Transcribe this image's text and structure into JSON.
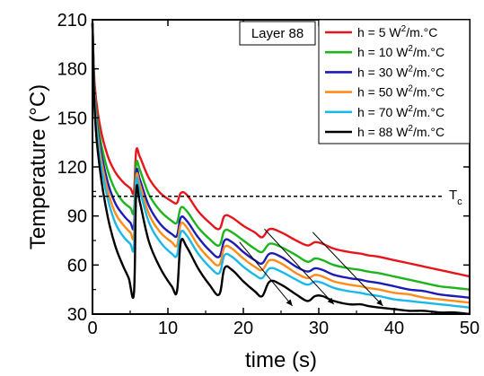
{
  "chart_data": {
    "type": "line",
    "xlabel": "time (s)",
    "ylabel": "Temperature (°C)",
    "xlim": [
      0,
      50
    ],
    "ylim": [
      30,
      210
    ],
    "xticks": [
      0,
      10,
      20,
      30,
      40,
      50
    ],
    "yticks": [
      30,
      60,
      90,
      120,
      150,
      180,
      210
    ],
    "grid": false,
    "legend_position": "top-right",
    "layer_label": "Layer 88",
    "reference_line": {
      "label": "T",
      "label_subscript": "c",
      "y": 102,
      "style": "dashed"
    },
    "series": [
      {
        "name": "h = 5 W²/m.°C",
        "legend_main": "h = 5 W",
        "legend_sup": "2",
        "legend_tail": "/m.°C",
        "color": "#e8141c",
        "points": [
          [
            0,
            208
          ],
          [
            0.3,
            170
          ],
          [
            1,
            145
          ],
          [
            2,
            127
          ],
          [
            3,
            117
          ],
          [
            4,
            111
          ],
          [
            5,
            107
          ],
          [
            5.5,
            105
          ],
          [
            5.8,
            130
          ],
          [
            6.3,
            126
          ],
          [
            7.5,
            113
          ],
          [
            9,
            104
          ],
          [
            10.5,
            99
          ],
          [
            11.2,
            98
          ],
          [
            11.7,
            104
          ],
          [
            12.5,
            103
          ],
          [
            14,
            93
          ],
          [
            15.5,
            86
          ],
          [
            16.8,
            82
          ],
          [
            17.5,
            90
          ],
          [
            18.5,
            89
          ],
          [
            20,
            84
          ],
          [
            21.5,
            80
          ],
          [
            22.5,
            77
          ],
          [
            23.5,
            82
          ],
          [
            25,
            80
          ],
          [
            27,
            75
          ],
          [
            28.5,
            72
          ],
          [
            29.5,
            74
          ],
          [
            30.5,
            73
          ],
          [
            32,
            70
          ],
          [
            34,
            68
          ],
          [
            35.5,
            67
          ],
          [
            36.5,
            66
          ],
          [
            38,
            65
          ],
          [
            40,
            63
          ],
          [
            42,
            61
          ],
          [
            44,
            59
          ],
          [
            46,
            57
          ],
          [
            48,
            55
          ],
          [
            50,
            53
          ]
        ]
      },
      {
        "name": "h = 10 W²/m.°C",
        "legend_main": "h = 10 W",
        "legend_sup": "2",
        "legend_tail": "/m.°C",
        "color": "#1cb51c",
        "points": [
          [
            0,
            208
          ],
          [
            0.3,
            165
          ],
          [
            1,
            138
          ],
          [
            2,
            118
          ],
          [
            3,
            106
          ],
          [
            4,
            99
          ],
          [
            5,
            95
          ],
          [
            5.5,
            93
          ],
          [
            5.8,
            122
          ],
          [
            6.3,
            118
          ],
          [
            7.5,
            103
          ],
          [
            9,
            93
          ],
          [
            10.5,
            87
          ],
          [
            11.2,
            86
          ],
          [
            11.7,
            95
          ],
          [
            12.5,
            93
          ],
          [
            14,
            83
          ],
          [
            15.5,
            76
          ],
          [
            16.8,
            72
          ],
          [
            17.5,
            81
          ],
          [
            18.5,
            80
          ],
          [
            20,
            75
          ],
          [
            21.5,
            70
          ],
          [
            22.5,
            68
          ],
          [
            23.5,
            73
          ],
          [
            25,
            71
          ],
          [
            27,
            66
          ],
          [
            28.5,
            62
          ],
          [
            29.5,
            64
          ],
          [
            30.5,
            63
          ],
          [
            32,
            60
          ],
          [
            34,
            58
          ],
          [
            35.5,
            57
          ],
          [
            36.5,
            56
          ],
          [
            38,
            55
          ],
          [
            40,
            53
          ],
          [
            42,
            51
          ],
          [
            44,
            49
          ],
          [
            46,
            47
          ],
          [
            48,
            46
          ],
          [
            50,
            45
          ]
        ]
      },
      {
        "name": "h = 30 W²/m.°C",
        "legend_main": "h = 30 W",
        "legend_sup": "2",
        "legend_tail": "/m.°C",
        "color": "#1c1cb5",
        "points": [
          [
            0,
            208
          ],
          [
            0.3,
            162
          ],
          [
            1,
            133
          ],
          [
            2,
            111
          ],
          [
            3,
            98
          ],
          [
            4,
            91
          ],
          [
            5,
            86
          ],
          [
            5.5,
            84
          ],
          [
            5.8,
            117
          ],
          [
            6.3,
            112
          ],
          [
            7.5,
            96
          ],
          [
            9,
            85
          ],
          [
            10.5,
            79
          ],
          [
            11.2,
            78
          ],
          [
            11.7,
            89
          ],
          [
            12.5,
            87
          ],
          [
            14,
            77
          ],
          [
            15.5,
            69
          ],
          [
            16.8,
            65
          ],
          [
            17.5,
            75
          ],
          [
            18.5,
            74
          ],
          [
            20,
            68
          ],
          [
            21.5,
            63
          ],
          [
            22.5,
            61
          ],
          [
            23.5,
            67
          ],
          [
            25,
            65
          ],
          [
            27,
            59
          ],
          [
            28.5,
            56
          ],
          [
            29.5,
            58
          ],
          [
            30.5,
            57
          ],
          [
            32,
            54
          ],
          [
            34,
            52
          ],
          [
            35.5,
            51
          ],
          [
            36.5,
            50
          ],
          [
            38,
            49
          ],
          [
            40,
            47
          ],
          [
            42,
            45
          ],
          [
            44,
            44
          ],
          [
            46,
            42
          ],
          [
            48,
            41
          ],
          [
            50,
            40
          ]
        ]
      },
      {
        "name": "h = 50 W²/m.°C",
        "legend_main": "h = 50 W",
        "legend_sup": "2",
        "legend_tail": "/m.°C",
        "color": "#ff8c1a",
        "points": [
          [
            0,
            208
          ],
          [
            0.3,
            160
          ],
          [
            1,
            129
          ],
          [
            2,
            106
          ],
          [
            3,
            92
          ],
          [
            4,
            85
          ],
          [
            5,
            80
          ],
          [
            5.5,
            78
          ],
          [
            5.8,
            114
          ],
          [
            6.3,
            109
          ],
          [
            7.5,
            91
          ],
          [
            9,
            80
          ],
          [
            10.5,
            74
          ],
          [
            11.2,
            72
          ],
          [
            11.7,
            85
          ],
          [
            12.5,
            83
          ],
          [
            14,
            72
          ],
          [
            15.5,
            64
          ],
          [
            16.8,
            60
          ],
          [
            17.5,
            71
          ],
          [
            18.5,
            70
          ],
          [
            20,
            64
          ],
          [
            21.5,
            59
          ],
          [
            22.5,
            57
          ],
          [
            23.5,
            63
          ],
          [
            25,
            61
          ],
          [
            27,
            55
          ],
          [
            28.5,
            52
          ],
          [
            29.5,
            54
          ],
          [
            30.5,
            53
          ],
          [
            32,
            50
          ],
          [
            34,
            48
          ],
          [
            35.5,
            47
          ],
          [
            36.5,
            46
          ],
          [
            38,
            45
          ],
          [
            40,
            43
          ],
          [
            42,
            42
          ],
          [
            44,
            40
          ],
          [
            46,
            39
          ],
          [
            48,
            38
          ],
          [
            50,
            37
          ]
        ]
      },
      {
        "name": "h = 70 W²/m.°C",
        "legend_main": "h = 70 W",
        "legend_sup": "2",
        "legend_tail": "/m.°C",
        "color": "#1ab8e8",
        "points": [
          [
            0,
            208
          ],
          [
            0.3,
            158
          ],
          [
            1,
            125
          ],
          [
            2,
            101
          ],
          [
            3,
            86
          ],
          [
            4,
            78
          ],
          [
            5,
            73
          ],
          [
            5.5,
            71
          ],
          [
            5.8,
            111
          ],
          [
            6.3,
            105
          ],
          [
            7.5,
            86
          ],
          [
            9,
            74
          ],
          [
            10.5,
            67
          ],
          [
            11.2,
            66
          ],
          [
            11.7,
            80
          ],
          [
            12.5,
            78
          ],
          [
            14,
            67
          ],
          [
            15.5,
            59
          ],
          [
            16.8,
            55
          ],
          [
            17.5,
            66
          ],
          [
            18.5,
            65
          ],
          [
            20,
            59
          ],
          [
            21.5,
            54
          ],
          [
            22.5,
            52
          ],
          [
            23.5,
            58
          ],
          [
            25,
            56
          ],
          [
            27,
            51
          ],
          [
            28.5,
            48
          ],
          [
            29.5,
            50
          ],
          [
            30.5,
            49
          ],
          [
            32,
            46
          ],
          [
            34,
            44
          ],
          [
            35.5,
            43
          ],
          [
            36.5,
            42
          ],
          [
            38,
            41
          ],
          [
            40,
            39
          ],
          [
            42,
            38
          ],
          [
            44,
            37
          ],
          [
            46,
            36
          ],
          [
            48,
            35
          ],
          [
            50,
            34
          ]
        ]
      },
      {
        "name": "h = 88 W²/m.°C",
        "legend_main": "h = 88 W",
        "legend_sup": "2",
        "legend_tail": "/m.°C",
        "color": "#000000",
        "points": [
          [
            0,
            208
          ],
          [
            0.3,
            154
          ],
          [
            1,
            118
          ],
          [
            2,
            90
          ],
          [
            3,
            72
          ],
          [
            4,
            60
          ],
          [
            4.8,
            52
          ],
          [
            5.5,
            43
          ],
          [
            5.8,
            105
          ],
          [
            6.3,
            98
          ],
          [
            7.5,
            74
          ],
          [
            9,
            58
          ],
          [
            10.5,
            47
          ],
          [
            11.2,
            44
          ],
          [
            11.7,
            74
          ],
          [
            12.5,
            71
          ],
          [
            14,
            58
          ],
          [
            15.5,
            48
          ],
          [
            16.8,
            42
          ],
          [
            17.5,
            58
          ],
          [
            18.5,
            57
          ],
          [
            20,
            50
          ],
          [
            21.5,
            44
          ],
          [
            22.5,
            41
          ],
          [
            23.5,
            50
          ],
          [
            25,
            48
          ],
          [
            27,
            42
          ],
          [
            28.5,
            38
          ],
          [
            29.5,
            41
          ],
          [
            30.5,
            41
          ],
          [
            32,
            38
          ],
          [
            34,
            36
          ],
          [
            35.5,
            36
          ],
          [
            36.5,
            35
          ],
          [
            38,
            34
          ],
          [
            40,
            33
          ],
          [
            42,
            32
          ],
          [
            44,
            32
          ],
          [
            46,
            31
          ],
          [
            48,
            31
          ],
          [
            50,
            30
          ]
        ]
      }
    ],
    "arrows": [
      {
        "from": [
          19.5,
          74
        ],
        "to": [
          26.5,
          35
        ]
      },
      {
        "from": [
          22.8,
          82
        ],
        "to": [
          32,
          36
        ]
      },
      {
        "from": [
          29.2,
          80
        ],
        "to": [
          38.5,
          35
        ]
      }
    ]
  }
}
